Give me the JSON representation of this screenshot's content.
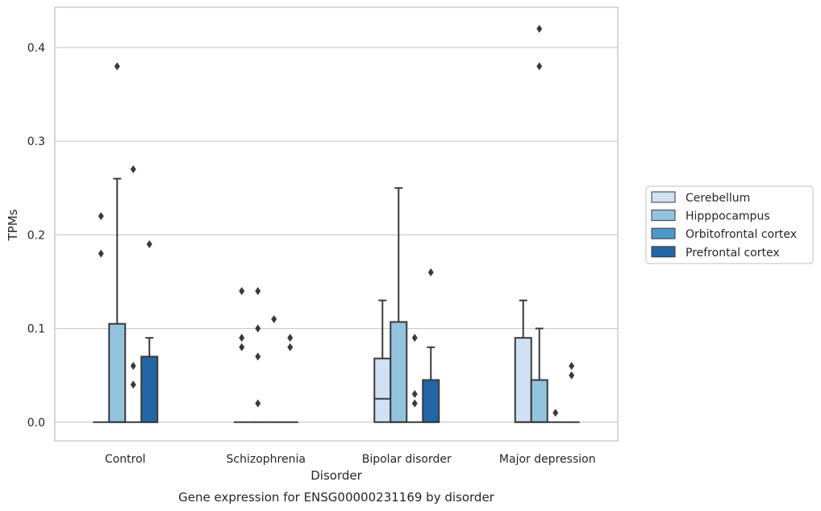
{
  "chart_data": {
    "type": "box",
    "title": "",
    "caption": "Gene expression for ENSG00000231169 by disorder",
    "xlabel": "Disorder",
    "ylabel": "TPMs",
    "categories": [
      "Control",
      "Schizophrenia",
      "Bipolar disorder",
      "Major depression"
    ],
    "ylim": [
      -0.02,
      0.443
    ],
    "yticks": [
      0.0,
      0.1,
      0.2,
      0.3,
      0.4
    ],
    "ytick_labels": [
      "0.0",
      "0.1",
      "0.2",
      "0.3",
      "0.4"
    ],
    "grid": true,
    "legend_position": "right",
    "series": [
      {
        "name": "Cerebellum",
        "color": "#cfe1f2",
        "boxes": [
          {
            "q1": 0,
            "median": 0,
            "q3": 0,
            "whisker_low": 0,
            "whisker_high": 0,
            "outliers": [
              0.22,
              0.18
            ]
          },
          {
            "q1": 0,
            "median": 0,
            "q3": 0,
            "whisker_low": 0,
            "whisker_high": 0,
            "outliers": [
              0.14,
              0.09,
              0.08
            ]
          },
          {
            "q1": 0,
            "median": 0.025,
            "q3": 0.068,
            "whisker_low": 0,
            "whisker_high": 0.13,
            "outliers": []
          },
          {
            "q1": 0,
            "median": 0,
            "q3": 0.09,
            "whisker_low": 0,
            "whisker_high": 0.13,
            "outliers": []
          }
        ]
      },
      {
        "name": "Hipppocampus",
        "color": "#93c3df",
        "boxes": [
          {
            "q1": 0,
            "median": 0,
            "q3": 0.105,
            "whisker_low": 0,
            "whisker_high": 0.26,
            "outliers": [
              0.38
            ]
          },
          {
            "q1": 0,
            "median": 0,
            "q3": 0,
            "whisker_low": 0,
            "whisker_high": 0,
            "outliers": [
              0.14,
              0.1,
              0.07,
              0.02
            ]
          },
          {
            "q1": 0,
            "median": 0,
            "q3": 0.107,
            "whisker_low": 0,
            "whisker_high": 0.25,
            "outliers": []
          },
          {
            "q1": 0,
            "median": 0,
            "q3": 0.045,
            "whisker_low": 0,
            "whisker_high": 0.1,
            "outliers": [
              0.42,
              0.38
            ]
          }
        ]
      },
      {
        "name": "Orbitofrontal cortex",
        "color": "#4b98c9",
        "boxes": [
          {
            "q1": 0,
            "median": 0,
            "q3": 0,
            "whisker_low": 0,
            "whisker_high": 0,
            "outliers": [
              0.27,
              0.06,
              0.04
            ]
          },
          {
            "q1": 0,
            "median": 0,
            "q3": 0,
            "whisker_low": 0,
            "whisker_high": 0,
            "outliers": [
              0.11
            ]
          },
          {
            "q1": 0,
            "median": 0,
            "q3": 0,
            "whisker_low": 0,
            "whisker_high": 0,
            "outliers": [
              0.09,
              0.03,
              0.02
            ]
          },
          {
            "q1": 0,
            "median": 0,
            "q3": 0,
            "whisker_low": 0,
            "whisker_high": 0,
            "outliers": [
              0.01
            ]
          }
        ]
      },
      {
        "name": "Prefrontal cortex",
        "color": "#2366a8",
        "boxes": [
          {
            "q1": 0,
            "median": 0,
            "q3": 0.07,
            "whisker_low": 0,
            "whisker_high": 0.09,
            "outliers": [
              0.19
            ]
          },
          {
            "q1": 0,
            "median": 0,
            "q3": 0,
            "whisker_low": 0,
            "whisker_high": 0,
            "outliers": [
              0.09,
              0.08
            ]
          },
          {
            "q1": 0,
            "median": 0,
            "q3": 0.045,
            "whisker_low": 0,
            "whisker_high": 0.08,
            "outliers": [
              0.16
            ]
          },
          {
            "q1": 0,
            "median": 0,
            "q3": 0,
            "whisker_low": 0,
            "whisker_high": 0,
            "outliers": [
              0.06,
              0.05
            ]
          }
        ]
      }
    ]
  }
}
